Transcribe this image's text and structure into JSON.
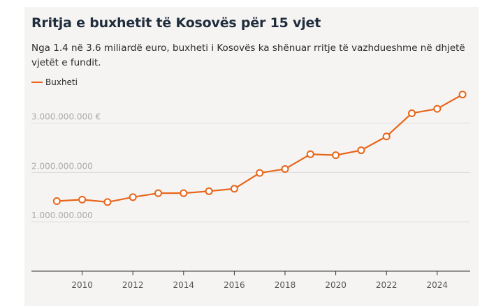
{
  "header": {
    "title": "Rritja e buxhetit të Kosovës për 15 vjet",
    "subtitle": "Nga 1.4 në 3.6 miliardë euro, buxheti i Kosovës ka shënuar rritje të vazhdueshme në dhjetë vjetët e fundit."
  },
  "colors": {
    "series": "#e8651a",
    "background": "#f5f4f2",
    "grid": "#dcdcdc"
  },
  "chart_data": {
    "type": "line",
    "title": "Rritja e buxhetit të Kosovës për 15 vjet",
    "subtitle": "Nga 1.4 në 3.6 miliardë euro, buxheti i Kosovës ka shënuar rritje të vazhdueshme në dhjetë vjetët e fundit.",
    "xlabel": "",
    "ylabel": "",
    "legend": "top-left",
    "grid": true,
    "xlim": [
      2008,
      2025.3
    ],
    "ylim": [
      0,
      3800000000
    ],
    "x": [
      2009,
      2010,
      2011,
      2012,
      2013,
      2014,
      2015,
      2016,
      2017,
      2018,
      2019,
      2020,
      2021,
      2022,
      2023,
      2024,
      2025
    ],
    "series": [
      {
        "name": "Buxheti",
        "values": [
          1420000000,
          1450000000,
          1400000000,
          1500000000,
          1580000000,
          1580000000,
          1620000000,
          1670000000,
          1990000000,
          2070000000,
          2370000000,
          2350000000,
          2450000000,
          2730000000,
          3200000000,
          3290000000,
          3580000000
        ]
      }
    ],
    "x_ticks": [
      2010,
      2012,
      2014,
      2016,
      2018,
      2020,
      2022,
      2024
    ],
    "x_tick_labels": [
      "2010",
      "2012",
      "2014",
      "2016",
      "2018",
      "2020",
      "2022",
      "2024"
    ],
    "y_ticks": [
      1000000000,
      2000000000,
      3000000000
    ],
    "y_tick_labels": [
      "1.000.000.000",
      "2.000.000.000",
      "3.000.000.000 €"
    ]
  }
}
